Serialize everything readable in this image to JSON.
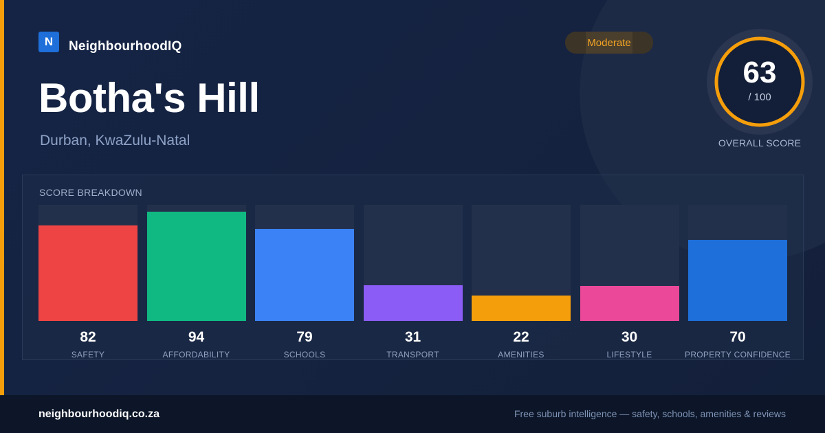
{
  "brand": {
    "icon_letter": "N",
    "name": "NeighbourhoodIQ"
  },
  "badge": {
    "label": "Moderate"
  },
  "suburb": {
    "name": "Botha's Hill",
    "location": "Durban, KwaZulu-Natal"
  },
  "overall": {
    "score": "63",
    "max": "/ 100",
    "label": "OVERALL SCORE",
    "fraction": 0.63,
    "ring_color": "#f59e0b"
  },
  "breakdown": {
    "title": "SCORE BREAKDOWN",
    "items": [
      {
        "value": 82,
        "label": "SAFETY",
        "color": "#ef4444"
      },
      {
        "value": 94,
        "label": "AFFORDABILITY",
        "color": "#10b981"
      },
      {
        "value": 79,
        "label": "SCHOOLS",
        "color": "#3b82f6"
      },
      {
        "value": 31,
        "label": "TRANSPORT",
        "color": "#8b5cf6"
      },
      {
        "value": 22,
        "label": "AMENITIES",
        "color": "#f59e0b"
      },
      {
        "value": 30,
        "label": "LIFESTYLE",
        "color": "#ec4899"
      },
      {
        "value": 70,
        "label": "PROPERTY CONFIDENCE",
        "color": "#1e6fd9"
      }
    ]
  },
  "footer": {
    "url": "neighbourhoodiq.co.za",
    "tagline": "Free suburb intelligence — safety, schools, amenities & reviews"
  }
}
